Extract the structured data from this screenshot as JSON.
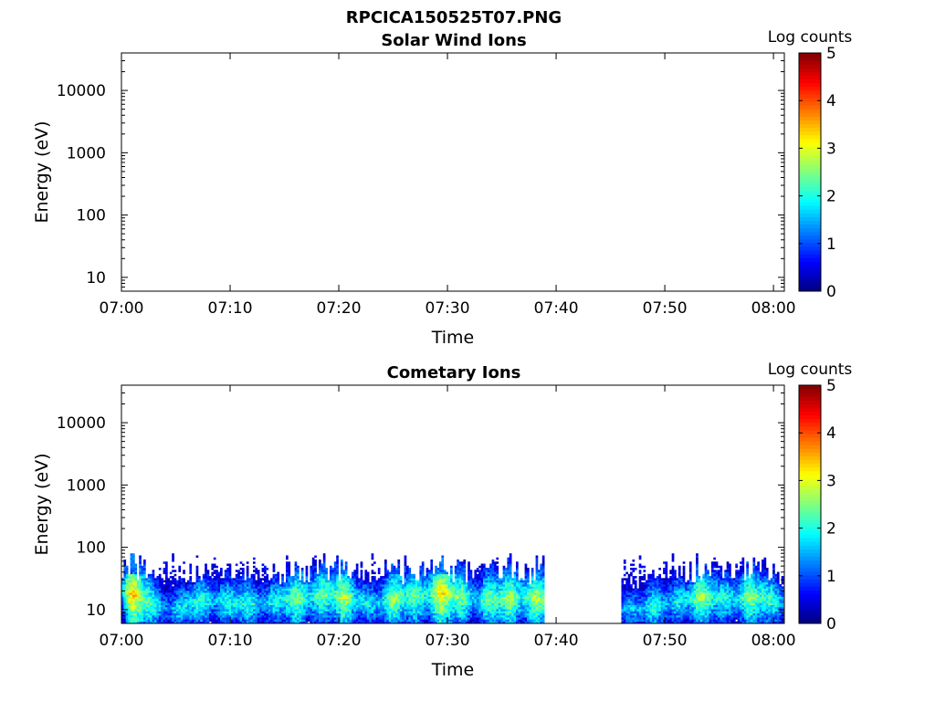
{
  "figure": {
    "title": "RPCICA150525T07.PNG"
  },
  "chart_data": [
    {
      "type": "heatmap",
      "title": "Solar Wind Ions",
      "xlabel": "Time",
      "ylabel": "Energy (eV)",
      "x_tick_labels": [
        "07:00",
        "07:10",
        "07:20",
        "07:30",
        "07:40",
        "07:50",
        "08:00"
      ],
      "x_range": [
        "07:00",
        "08:01"
      ],
      "y_scale": "log",
      "y_tick_labels": [
        "10",
        "100",
        "1000",
        "10000"
      ],
      "y_range": [
        6,
        40000
      ],
      "colorbar": {
        "label": "Log counts",
        "ticks": [
          "0",
          "1",
          "2",
          "3",
          "4",
          "5"
        ],
        "range": [
          0,
          5
        ],
        "colormap": "jet"
      },
      "has_data": false,
      "segments": []
    },
    {
      "type": "heatmap",
      "title": "Cometary Ions",
      "xlabel": "Time",
      "ylabel": "Energy (eV)",
      "x_tick_labels": [
        "07:00",
        "07:10",
        "07:20",
        "07:30",
        "07:40",
        "07:50",
        "08:00"
      ],
      "x_range": [
        "07:00",
        "08:01"
      ],
      "y_scale": "log",
      "y_tick_labels": [
        "10",
        "100",
        "1000",
        "10000"
      ],
      "y_range": [
        6,
        40000
      ],
      "colorbar": {
        "label": "Log counts",
        "ticks": [
          "0",
          "1",
          "2",
          "3",
          "4",
          "5"
        ],
        "range": [
          0,
          5
        ],
        "colormap": "jet"
      },
      "has_data": true,
      "energy_range_eV": [
        6,
        80
      ],
      "data_gaps": [
        [
          "07:39",
          "07:46"
        ]
      ],
      "segments": [
        [
          "07:00",
          "07:39"
        ],
        [
          "07:46",
          "08:01"
        ]
      ],
      "intensity_profile": [
        {
          "time": "07:00",
          "peak_log_counts": 2.6,
          "peak_energy_eV": 20
        },
        {
          "time": "07:01",
          "peak_log_counts": 3.6,
          "peak_energy_eV": 18
        },
        {
          "time": "07:02",
          "peak_log_counts": 3.3,
          "peak_energy_eV": 15
        },
        {
          "time": "07:03",
          "peak_log_counts": 2.4,
          "peak_energy_eV": 12
        },
        {
          "time": "07:05",
          "peak_log_counts": 2.0,
          "peak_energy_eV": 10
        },
        {
          "time": "07:08",
          "peak_log_counts": 2.5,
          "peak_energy_eV": 14
        },
        {
          "time": "07:12",
          "peak_log_counts": 2.2,
          "peak_energy_eV": 12
        },
        {
          "time": "07:16",
          "peak_log_counts": 2.6,
          "peak_energy_eV": 15
        },
        {
          "time": "07:19",
          "peak_log_counts": 3.2,
          "peak_energy_eV": 18
        },
        {
          "time": "07:23",
          "peak_log_counts": 2.3,
          "peak_energy_eV": 12
        },
        {
          "time": "07:26",
          "peak_log_counts": 2.9,
          "peak_energy_eV": 16
        },
        {
          "time": "07:30",
          "peak_log_counts": 3.4,
          "peak_energy_eV": 18
        },
        {
          "time": "07:33",
          "peak_log_counts": 2.5,
          "peak_energy_eV": 14
        },
        {
          "time": "07:37",
          "peak_log_counts": 3.3,
          "peak_energy_eV": 16
        },
        {
          "time": "07:47",
          "peak_log_counts": 2.0,
          "peak_energy_eV": 10
        },
        {
          "time": "07:50",
          "peak_log_counts": 2.2,
          "peak_energy_eV": 12
        },
        {
          "time": "07:53",
          "peak_log_counts": 2.8,
          "peak_energy_eV": 16
        },
        {
          "time": "07:56",
          "peak_log_counts": 2.6,
          "peak_energy_eV": 15
        },
        {
          "time": "07:59",
          "peak_log_counts": 2.8,
          "peak_energy_eV": 16
        },
        {
          "time": "08:01",
          "peak_log_counts": 2.4,
          "peak_energy_eV": 12
        }
      ]
    }
  ],
  "colors": {
    "axis": "#000000",
    "background": "#ffffff"
  }
}
